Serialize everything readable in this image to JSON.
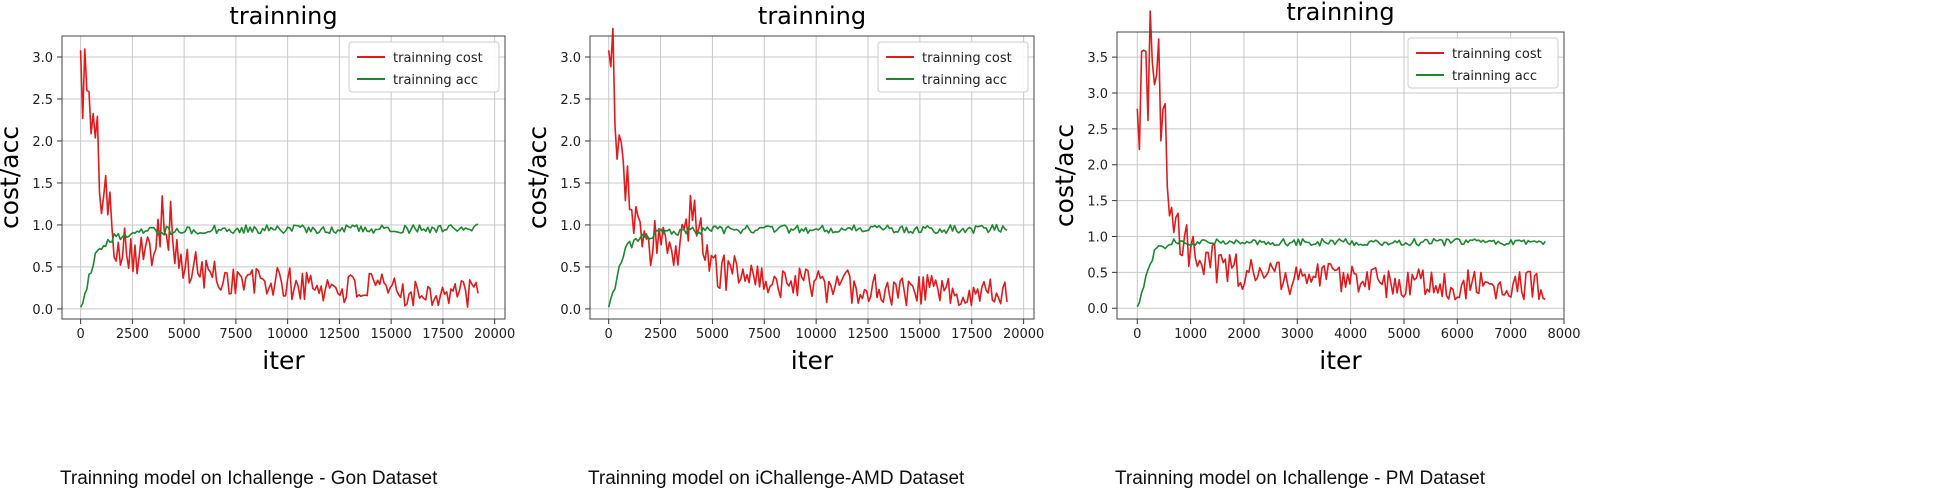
{
  "chart_data": [
    {
      "type": "line",
      "title": "trainning",
      "xlabel": "iter",
      "ylabel": "cost/acc",
      "caption": "Trainning model on Ichallenge - Gon Dataset",
      "xlim": [
        -900,
        20500
      ],
      "ylim": [
        -0.12,
        3.25
      ],
      "x_max": 19200,
      "xticks": [
        0,
        2500,
        5000,
        7500,
        10000,
        12500,
        15000,
        17500,
        20000
      ],
      "yticks": [
        0.0,
        0.5,
        1.0,
        1.5,
        2.0,
        2.5,
        3.0
      ],
      "ytick_format": "1dp",
      "grid": true,
      "legend_position": "upper right",
      "series": [
        {
          "name": "trainning cost",
          "color": "#e31a1c",
          "values": [
            3.08,
            1.85,
            0.92,
            0.78,
            0.62,
            1.32,
            0.55,
            0.48,
            0.42,
            0.38,
            0.35,
            0.33,
            0.32,
            0.3,
            0.29,
            0.28,
            0.27,
            0.26,
            0.25,
            0.24,
            0.23,
            0.22,
            0.21,
            0.2,
            0.19
          ]
        },
        {
          "name": "trainning acc",
          "color": "#1a8a2e",
          "values": [
            0.02,
            0.72,
            0.85,
            0.9,
            0.92,
            0.93,
            0.94,
            0.94,
            0.95,
            0.95,
            0.95,
            0.95,
            0.95,
            0.95,
            0.95,
            0.95,
            0.95,
            0.95,
            0.95,
            0.95,
            0.95,
            0.95,
            0.95,
            0.96,
            0.96
          ]
        }
      ]
    },
    {
      "type": "line",
      "title": "trainning",
      "xlabel": "iter",
      "ylabel": "cost/acc",
      "caption": "Trainning model on iChallenge-AMD Dataset",
      "xlim": [
        -900,
        20500
      ],
      "ylim": [
        -0.12,
        3.25
      ],
      "x_max": 19200,
      "xticks": [
        0,
        2500,
        5000,
        7500,
        10000,
        12500,
        15000,
        17500,
        20000
      ],
      "yticks": [
        0.0,
        0.5,
        1.0,
        1.5,
        2.0,
        2.5,
        3.0
      ],
      "ytick_format": "1dp",
      "grid": true,
      "legend_position": "upper right",
      "series": [
        {
          "name": "trainning cost",
          "color": "#e31a1c",
          "values": [
            3.08,
            1.85,
            0.92,
            0.78,
            0.62,
            1.32,
            0.55,
            0.48,
            0.42,
            0.38,
            0.35,
            0.33,
            0.32,
            0.3,
            0.29,
            0.28,
            0.27,
            0.26,
            0.25,
            0.24,
            0.23,
            0.22,
            0.21,
            0.2,
            0.19
          ]
        },
        {
          "name": "trainning acc",
          "color": "#1a8a2e",
          "values": [
            0.02,
            0.72,
            0.85,
            0.9,
            0.92,
            0.93,
            0.94,
            0.94,
            0.95,
            0.95,
            0.95,
            0.95,
            0.95,
            0.95,
            0.95,
            0.95,
            0.95,
            0.95,
            0.95,
            0.95,
            0.95,
            0.95,
            0.95,
            0.96,
            0.96
          ]
        }
      ]
    },
    {
      "type": "line",
      "title": "trainning",
      "xlabel": "iter",
      "ylabel": "cost/acc",
      "caption": "Trainning model on Ichallenge - PM Dataset",
      "xlim": [
        -380,
        8000
      ],
      "ylim": [
        -0.15,
        3.85
      ],
      "x_max": 7650,
      "xticks": [
        0,
        1000,
        2000,
        3000,
        4000,
        5000,
        6000,
        7000,
        8000
      ],
      "yticks": [
        0.0,
        0.5,
        1.0,
        1.5,
        2.0,
        2.5,
        3.0,
        3.5
      ],
      "ytick_format": "1dp",
      "grid": true,
      "legend_position": "upper right",
      "series": [
        {
          "name": "trainning cost",
          "color": "#e31a1c",
          "values": [
            2.78,
            3.68,
            1.5,
            0.9,
            0.75,
            0.6,
            0.55,
            0.52,
            0.48,
            0.45,
            0.44,
            0.43,
            0.42,
            0.4,
            0.39,
            0.38,
            0.37,
            0.36,
            0.36,
            0.35,
            0.35,
            0.34,
            0.34,
            0.33,
            0.33
          ]
        },
        {
          "name": "trainning acc",
          "color": "#1a8a2e",
          "values": [
            0.02,
            0.8,
            0.92,
            0.9,
            0.91,
            0.92,
            0.92,
            0.92,
            0.92,
            0.92,
            0.92,
            0.92,
            0.92,
            0.92,
            0.92,
            0.92,
            0.92,
            0.92,
            0.92,
            0.92,
            0.92,
            0.92,
            0.92,
            0.92,
            0.93
          ]
        }
      ]
    }
  ]
}
